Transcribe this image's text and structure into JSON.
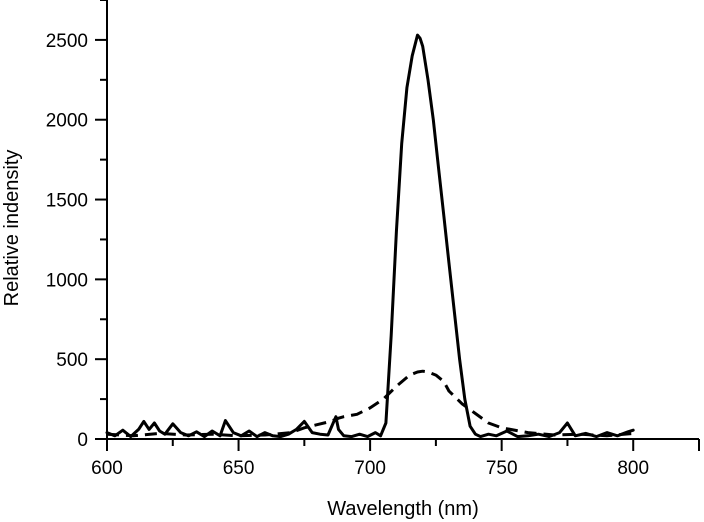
{
  "chart_data": {
    "type": "line",
    "xlabel": "Wavelength (nm)",
    "ylabel": "Relative indensity",
    "xlim": [
      600,
      825
    ],
    "ylim": [
      0,
      2750
    ],
    "x_ticks": [
      600,
      650,
      700,
      750,
      800
    ],
    "y_ticks": [
      0,
      500,
      1000,
      1500,
      2000,
      2500
    ],
    "grid": false,
    "series": [
      {
        "style": "solid",
        "color": "#000000",
        "x": [
          600,
          603,
          606,
          609,
          612,
          614,
          616,
          618,
          620,
          622,
          625,
          628,
          631,
          634,
          637,
          640,
          643,
          645,
          648,
          651,
          654,
          657,
          660,
          663,
          666,
          669,
          672,
          675,
          678,
          681,
          684,
          687,
          688,
          690,
          693,
          696,
          699,
          702,
          704,
          706,
          708,
          710,
          712,
          714,
          716,
          718,
          719,
          720,
          722,
          724,
          726,
          728,
          730,
          732,
          734,
          736,
          738,
          740,
          742,
          745,
          748,
          752,
          756,
          760,
          764,
          768,
          772,
          775,
          778,
          782,
          786,
          790,
          794,
          798,
          800
        ],
        "y": [
          40,
          20,
          55,
          15,
          60,
          110,
          60,
          100,
          50,
          30,
          95,
          40,
          20,
          45,
          15,
          50,
          20,
          115,
          40,
          20,
          50,
          15,
          40,
          20,
          15,
          30,
          60,
          110,
          40,
          30,
          25,
          140,
          60,
          20,
          15,
          30,
          15,
          40,
          20,
          100,
          650,
          1300,
          1850,
          2200,
          2400,
          2530,
          2510,
          2460,
          2250,
          2000,
          1700,
          1400,
          1100,
          800,
          500,
          250,
          80,
          30,
          15,
          30,
          20,
          50,
          15,
          20,
          30,
          15,
          40,
          100,
          20,
          35,
          15,
          40,
          20,
          45,
          55
        ]
      },
      {
        "style": "dashed",
        "color": "#000000",
        "x": [
          600,
          610,
          620,
          630,
          640,
          650,
          660,
          670,
          675,
          680,
          685,
          688,
          690,
          695,
          700,
          705,
          710,
          715,
          718,
          720,
          722,
          725,
          728,
          730,
          735,
          740,
          745,
          750,
          760,
          770,
          780,
          790,
          800
        ],
        "y": [
          30,
          20,
          35,
          25,
          30,
          20,
          25,
          40,
          70,
          90,
          110,
          130,
          140,
          155,
          195,
          250,
          330,
          400,
          420,
          425,
          420,
          400,
          360,
          300,
          220,
          160,
          100,
          70,
          40,
          25,
          30,
          20,
          35
        ]
      }
    ]
  }
}
